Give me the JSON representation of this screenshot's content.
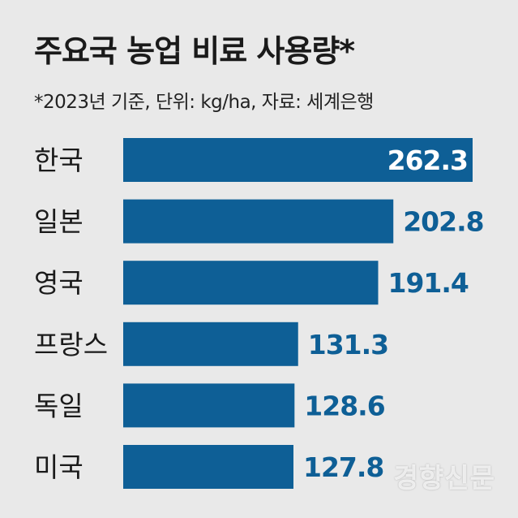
{
  "chart_data": {
    "type": "bar",
    "orientation": "horizontal",
    "title": "주요국 농업 비료 사용량*",
    "subtitle": "*2023년 기준, 단위: kg/ha, 자료: 세계은행",
    "categories": [
      "한국",
      "일본",
      "영국",
      "프랑스",
      "독일",
      "미국"
    ],
    "values": [
      262.3,
      202.8,
      191.4,
      131.3,
      128.6,
      127.8
    ],
    "value_labels": [
      "262.3",
      "202.8",
      "191.4",
      "131.3",
      "128.6",
      "127.8"
    ],
    "xlim": [
      0,
      262.3
    ],
    "grid": false,
    "colors": {
      "bar": "#0e5f96",
      "value_outside": "#0e5f96",
      "value_inside": "#ffffff",
      "background": "#e9e9e9"
    }
  },
  "watermark": "경향신문"
}
